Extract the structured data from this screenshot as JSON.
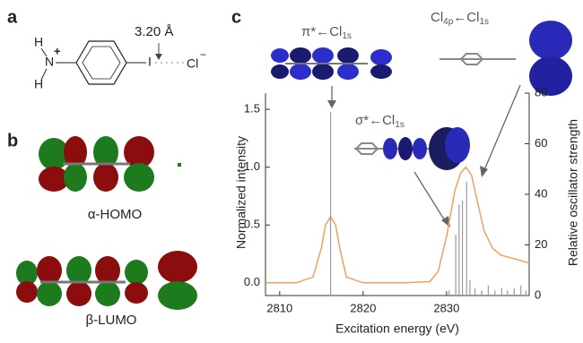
{
  "panels": [
    "a",
    "b",
    "c"
  ],
  "structure": {
    "distance": "3.20 Å",
    "atoms": [
      "H",
      "N",
      "+",
      "H",
      "I",
      "Cl",
      "−"
    ]
  },
  "orbitals": [
    "α-HOMO",
    "β-LUMO"
  ],
  "chart_data": {
    "type": "line",
    "xlabel": "Excitation energy (eV)",
    "ylabel": "Normalized intensity",
    "y2label": "Relative oscillator strength",
    "annotations": [
      [
        "π*←Cl",
        "1s"
      ],
      [
        "Cl",
        "4p",
        "←Cl",
        "1s"
      ],
      [
        "σ*←Cl",
        "1s"
      ]
    ],
    "xlim": [
      2808.3,
      2839.9
    ],
    "xticks": [
      2810,
      2820,
      2830
    ],
    "ylim": [
      -0.11,
      1.64
    ],
    "yticks": [
      {
        "value": 0,
        "label": "0.0"
      },
      0.5,
      {
        "value": 1,
        "label": "1.0"
      },
      1.5
    ],
    "y2lim": [
      0,
      80
    ],
    "y2ticks": [
      0,
      20,
      40,
      60,
      80
    ],
    "series": [
      {
        "color": "#f0a060",
        "x": [
          2808.3,
          2812,
          2814,
          2815,
          2815.5,
          2816.1,
          2816.7,
          2817.2,
          2818,
          2820,
          2825,
          2828,
          2829,
          2830,
          2831,
          2831.7,
          2832.3,
          2833,
          2833.7,
          2834.5,
          2835.5,
          2836.5,
          2837.5,
          2838.5,
          2839.9
        ],
        "values": [
          0,
          0,
          0.05,
          0.3,
          0.5,
          0.57,
          0.5,
          0.3,
          0.05,
          0,
          0,
          0.01,
          0.1,
          0.4,
          0.8,
          0.95,
          1.0,
          0.93,
          0.7,
          0.45,
          0.3,
          0.24,
          0.22,
          0.2,
          0.17
        ]
      },
      {
        "color": "#9a9a9a",
        "axis": "y2",
        "x": [
          2816.1,
          2830.3,
          2831.1,
          2831.5,
          2831.9,
          2832.4,
          2832.8,
          2833.4,
          2834.2,
          2835.0,
          2835.8,
          2836.6,
          2837.3,
          2838.1,
          2838.9,
          2839.5
        ],
        "values": [
          72.6,
          2,
          24,
          36,
          37.5,
          45,
          6,
          3,
          2,
          4,
          2,
          3,
          2,
          3,
          4,
          2
        ]
      }
    ]
  }
}
